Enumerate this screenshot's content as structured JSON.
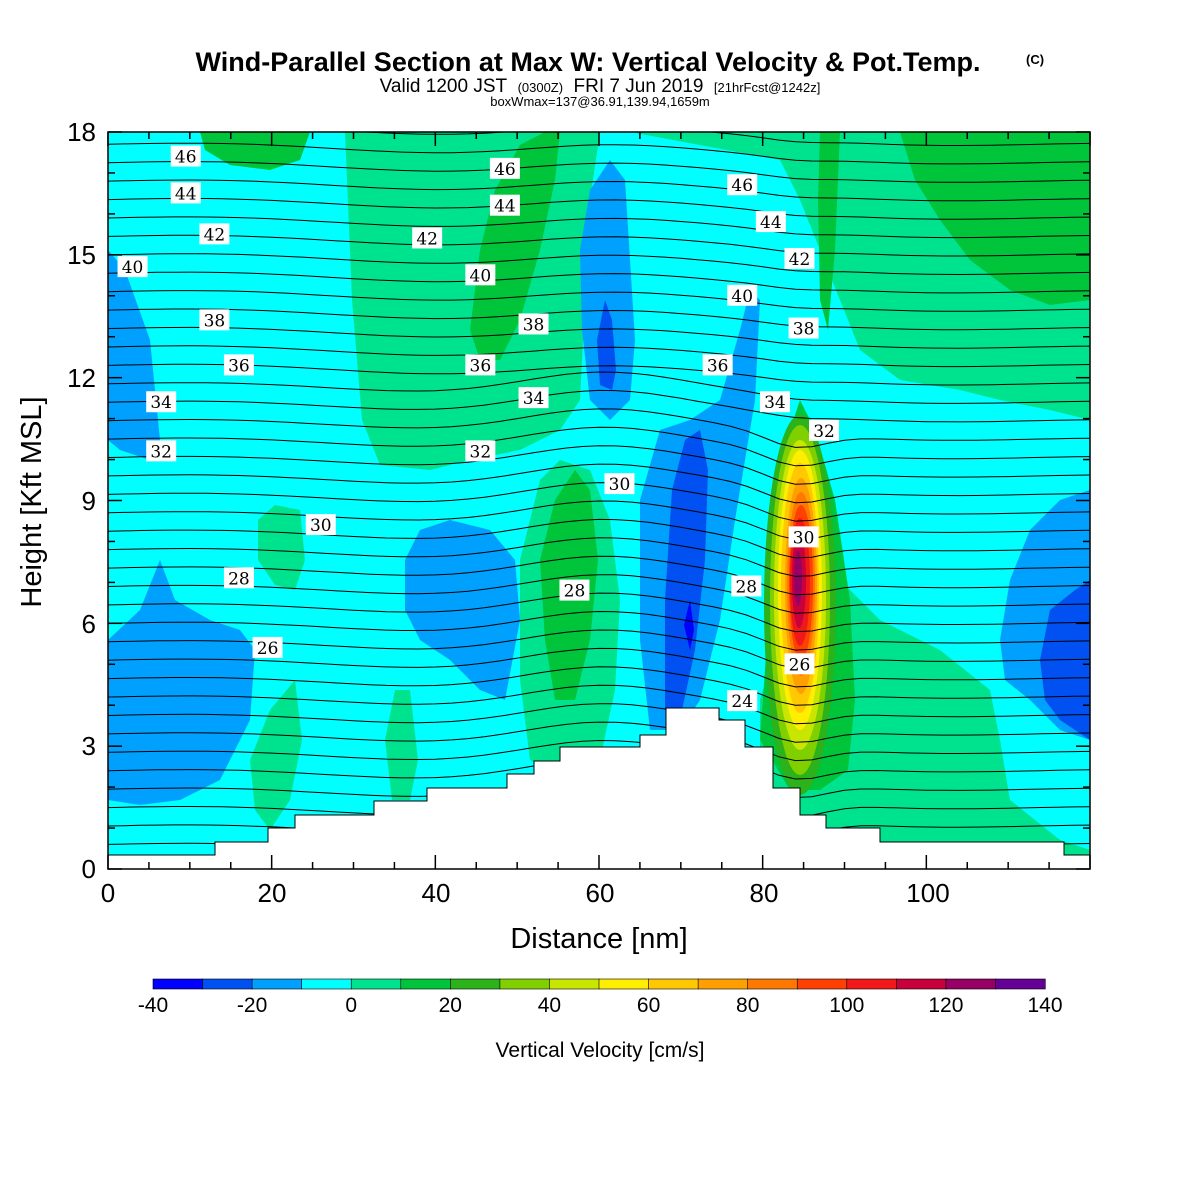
{
  "header": {
    "title": "Wind-Parallel Section at Max W: Vertical Velocity & Pot.Temp.",
    "copyright": "(C)",
    "valid_prefix": "Valid 1200 JST",
    "valid_utc": "(0300Z)",
    "valid_date": "FRI 7 Jun 2019",
    "forecast_tag": "[21hrFcst@1242z]",
    "box_info": "boxWmax=137@36.91,139.94,1659m"
  },
  "colors": {
    "neg40": "#0000ff",
    "neg30": "#0050f2",
    "neg20": "#00a0ff",
    "neg10": "#00ffff",
    "zero": "#00e38e",
    "pos10": "#00c43a",
    "pos20": "#2cb21a",
    "pos30": "#80d000",
    "pos40": "#c8e600",
    "pos50": "#ffee00",
    "pos60": "#ffc800",
    "pos70": "#ffa000",
    "pos80": "#ff7800",
    "pos90": "#ff4000",
    "pos100": "#f01818",
    "pos110": "#c8003c",
    "pos120": "#960064",
    "pos130": "#640096"
  },
  "chart_data": {
    "type": "heatmap",
    "xlabel": "Distance [nm]",
    "ylabel": "Height [Kft MSL]",
    "x_ticks": [
      "0",
      "20",
      "40",
      "60",
      "80",
      "100"
    ],
    "y_ticks": [
      "0",
      "3",
      "6",
      "9",
      "12",
      "15",
      "18"
    ],
    "xlim": [
      0,
      120
    ],
    "ylim": [
      0,
      18
    ],
    "colorbar": {
      "label": "Vertical Velocity [cm/s]",
      "bounds": [
        -40,
        -30,
        -20,
        -10,
        0,
        10,
        20,
        30,
        40,
        50,
        60,
        70,
        80,
        90,
        100,
        110,
        120,
        130,
        140
      ],
      "tick_labels": [
        "-40",
        "-20",
        "0",
        "20",
        "40",
        "60",
        "80",
        "100",
        "120",
        "140"
      ]
    },
    "contour_field": "Potential temperature",
    "contour_labels": [
      {
        "text": "46",
        "x": 9.5,
        "y": 17.4
      },
      {
        "text": "44",
        "x": 9.5,
        "y": 16.5
      },
      {
        "text": "42",
        "x": 13,
        "y": 15.5
      },
      {
        "text": "40",
        "x": 3,
        "y": 14.7
      },
      {
        "text": "38",
        "x": 13,
        "y": 13.4
      },
      {
        "text": "36",
        "x": 16,
        "y": 12.3
      },
      {
        "text": "34",
        "x": 6.5,
        "y": 11.4
      },
      {
        "text": "32",
        "x": 6.5,
        "y": 10.2
      },
      {
        "text": "30",
        "x": 26,
        "y": 8.4
      },
      {
        "text": "28",
        "x": 16,
        "y": 7.1
      },
      {
        "text": "26",
        "x": 19.5,
        "y": 5.4
      },
      {
        "text": "46",
        "x": 48.5,
        "y": 17.1
      },
      {
        "text": "44",
        "x": 48.5,
        "y": 16.2
      },
      {
        "text": "42",
        "x": 39,
        "y": 15.4
      },
      {
        "text": "40",
        "x": 45.5,
        "y": 14.5
      },
      {
        "text": "38",
        "x": 52,
        "y": 13.3
      },
      {
        "text": "36",
        "x": 45.5,
        "y": 12.3
      },
      {
        "text": "34",
        "x": 52,
        "y": 11.5
      },
      {
        "text": "32",
        "x": 45.5,
        "y": 10.2
      },
      {
        "text": "30",
        "x": 62.5,
        "y": 9.4
      },
      {
        "text": "28",
        "x": 57,
        "y": 6.8
      },
      {
        "text": "46",
        "x": 77.5,
        "y": 16.7
      },
      {
        "text": "44",
        "x": 81,
        "y": 15.8
      },
      {
        "text": "42",
        "x": 84.5,
        "y": 14.9
      },
      {
        "text": "40",
        "x": 77.5,
        "y": 14.0
      },
      {
        "text": "38",
        "x": 85,
        "y": 13.2
      },
      {
        "text": "36",
        "x": 74.5,
        "y": 12.3
      },
      {
        "text": "34",
        "x": 81.5,
        "y": 11.4
      },
      {
        "text": "32",
        "x": 87.5,
        "y": 10.7
      },
      {
        "text": "30",
        "x": 85,
        "y": 8.1
      },
      {
        "text": "28",
        "x": 78,
        "y": 6.9
      },
      {
        "text": "26",
        "x": 84.5,
        "y": 5.0
      },
      {
        "text": "24",
        "x": 77.5,
        "y": 4.1
      }
    ],
    "max_updraft": {
      "value": 137,
      "x": 84,
      "y": 7.2
    }
  }
}
